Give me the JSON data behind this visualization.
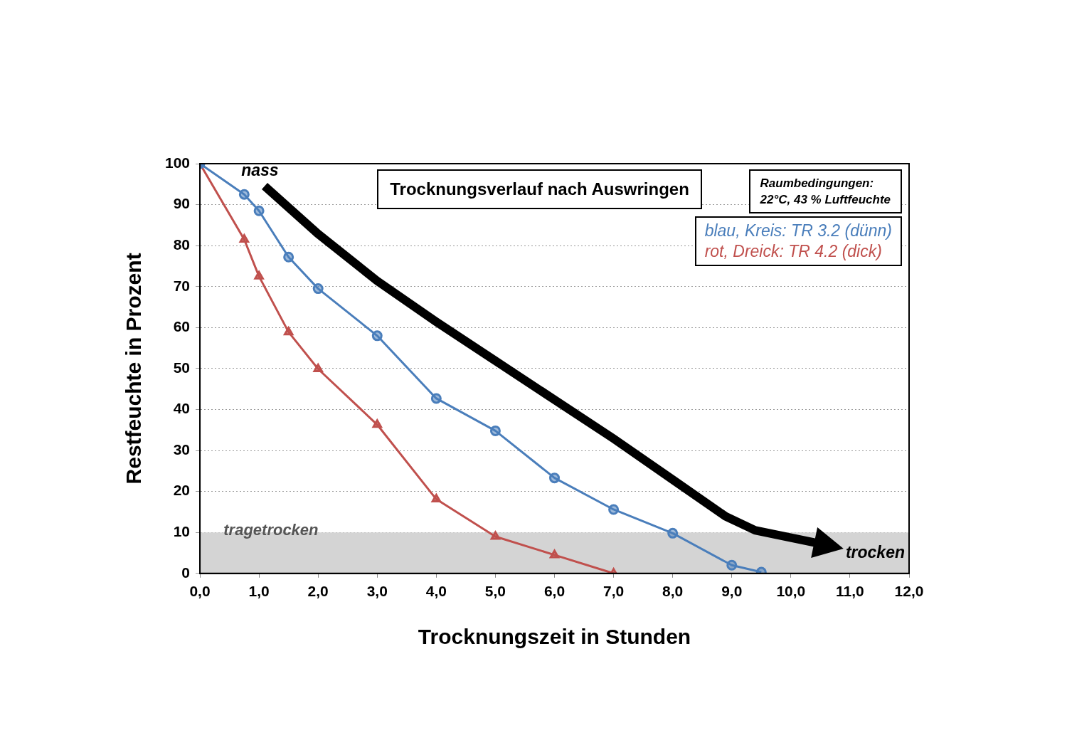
{
  "chart_data": {
    "type": "line",
    "title": "Trocknungsverlauf nach Auswringen",
    "xlabel": "Trocknungszeit in Stunden",
    "ylabel": "Restfeuchte in Prozent",
    "annotations": [
      "Raumbedingungen:\n22°C, 43 % Luftfeuchte",
      "nass",
      "trocken",
      {
        "text": "tragetrocken",
        "x": 0.4,
        "y": 10
      }
    ],
    "series": [
      {
        "name": "blau, Kreis: TR 3.2 (dünn)",
        "color": "#4a7ebb",
        "marker": "circle",
        "x": [
          0,
          0.75,
          1,
          1.5,
          2,
          3,
          4,
          5,
          6,
          7,
          8,
          9,
          9.5
        ],
        "values": [
          100,
          92.5,
          88.5,
          77.2,
          69.5,
          58,
          42.7,
          34.8,
          23.3,
          15.6,
          9.8,
          2,
          0.3
        ]
      },
      {
        "name": "rot, Dreick: TR 4.2 (dick)",
        "color": "#c0504d",
        "marker": "triangle",
        "x": [
          0,
          0.75,
          1,
          1.5,
          2,
          3,
          4,
          5,
          6,
          7
        ],
        "values": [
          100,
          81.5,
          72.5,
          58.9,
          49.9,
          36.3,
          18.1,
          9,
          4.5,
          0
        ]
      }
    ],
    "bands": [
      {
        "axis": "y",
        "from": 0,
        "to": 10,
        "color": "#d4d4d4"
      }
    ],
    "xlim": [
      0,
      12
    ],
    "ylim": [
      0,
      100
    ],
    "xticks": [
      {
        "value": 0,
        "label": "0,0"
      },
      {
        "value": 1,
        "label": "1,0"
      },
      {
        "value": 2,
        "label": "2,0"
      },
      {
        "value": 3,
        "label": "3,0"
      },
      {
        "value": 4,
        "label": "4,0"
      },
      {
        "value": 5,
        "label": "5,0"
      },
      {
        "value": 6,
        "label": "6,0"
      },
      {
        "value": 7,
        "label": "7,0"
      },
      {
        "value": 8,
        "label": "8,0"
      },
      {
        "value": 9,
        "label": "9,0"
      },
      {
        "value": 10,
        "label": "10,0"
      },
      {
        "value": 11,
        "label": "11,0"
      },
      {
        "value": 12,
        "label": "12,0"
      }
    ],
    "yticks": [
      0,
      10,
      20,
      30,
      40,
      50,
      60,
      70,
      80,
      90,
      100
    ],
    "grid": "y",
    "legend": "top right",
    "line_style": "solid"
  }
}
